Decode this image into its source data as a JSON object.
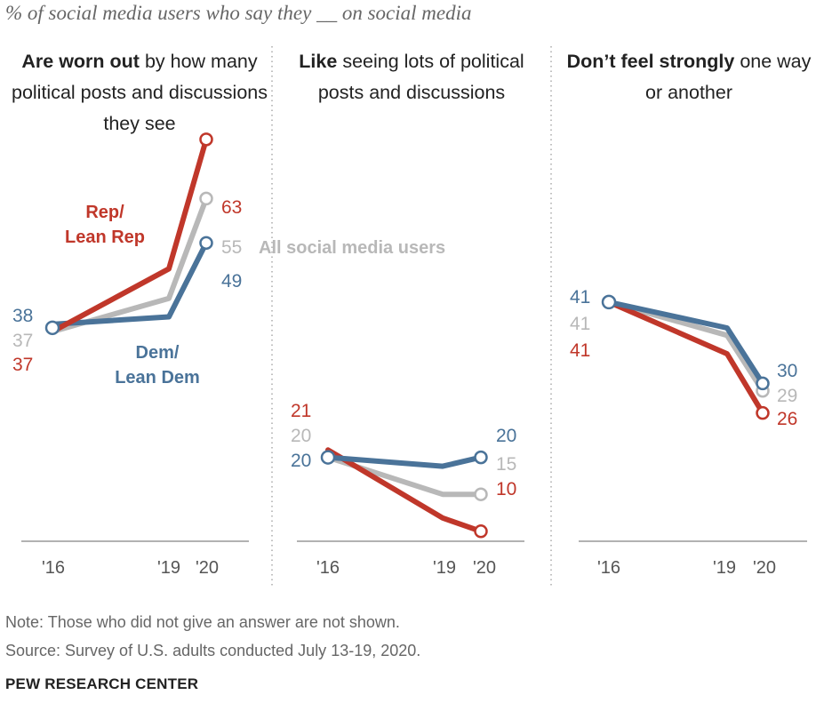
{
  "subtitle": "% of social media users who say they __ on social media",
  "colors": {
    "rep": "#c0372a",
    "dem": "#4a7399",
    "all": "#b8b8b8",
    "axis": "#999999",
    "divider": "#aaaaaa"
  },
  "chart_data": [
    {
      "type": "line",
      "title_bold": "Are worn out",
      "title_rest": "by how many political posts and discussions they see",
      "x": [
        "'16",
        "'19",
        "'20"
      ],
      "series": [
        {
          "name": "Rep/ Lean Rep",
          "key": "rep",
          "values": [
            37,
            null,
            63
          ],
          "labels": [
            "37",
            "",
            "63"
          ]
        },
        {
          "name": "All social media users",
          "key": "all",
          "values": [
            37,
            null,
            55
          ],
          "labels": [
            "37",
            "",
            "55"
          ]
        },
        {
          "name": "Dem/ Lean Dem",
          "key": "dem",
          "values": [
            38,
            null,
            49
          ],
          "labels": [
            "38",
            "",
            "49"
          ]
        }
      ]
    },
    {
      "type": "line",
      "title_bold": "Like",
      "title_rest": "seeing lots of political posts and discussions",
      "x": [
        "'16",
        "'19",
        "'20"
      ],
      "series": [
        {
          "key": "rep",
          "values": [
            21,
            null,
            10
          ],
          "labels": [
            "21",
            "",
            "10"
          ]
        },
        {
          "key": "all",
          "values": [
            20,
            null,
            15
          ],
          "labels": [
            "20",
            "",
            "15"
          ]
        },
        {
          "key": "dem",
          "values": [
            20,
            null,
            20
          ],
          "labels": [
            "20",
            "",
            "20"
          ]
        }
      ]
    },
    {
      "type": "line",
      "title_bold": "Don’t feel strongly",
      "title_rest": "one way or another",
      "x": [
        "'16",
        "'19",
        "'20"
      ],
      "series": [
        {
          "key": "rep",
          "values": [
            41,
            null,
            26
          ],
          "labels": [
            "41",
            "",
            "26"
          ]
        },
        {
          "key": "all",
          "values": [
            41,
            null,
            29
          ],
          "labels": [
            "41",
            "",
            "29"
          ]
        },
        {
          "key": "dem",
          "values": [
            41,
            null,
            30
          ],
          "labels": [
            "41",
            "",
            "30"
          ]
        }
      ]
    }
  ],
  "series_labels": {
    "rep_line1": "Rep/",
    "rep_line2": "Lean Rep",
    "all": "All social media users",
    "dem_line1": "Dem/",
    "dem_line2": "Lean Dem"
  },
  "note": "Note: Those who did not give an answer are not shown.",
  "source": "Source: Survey of U.S. adults conducted July 13-19, 2020.",
  "brand": "PEW RESEARCH CENTER"
}
